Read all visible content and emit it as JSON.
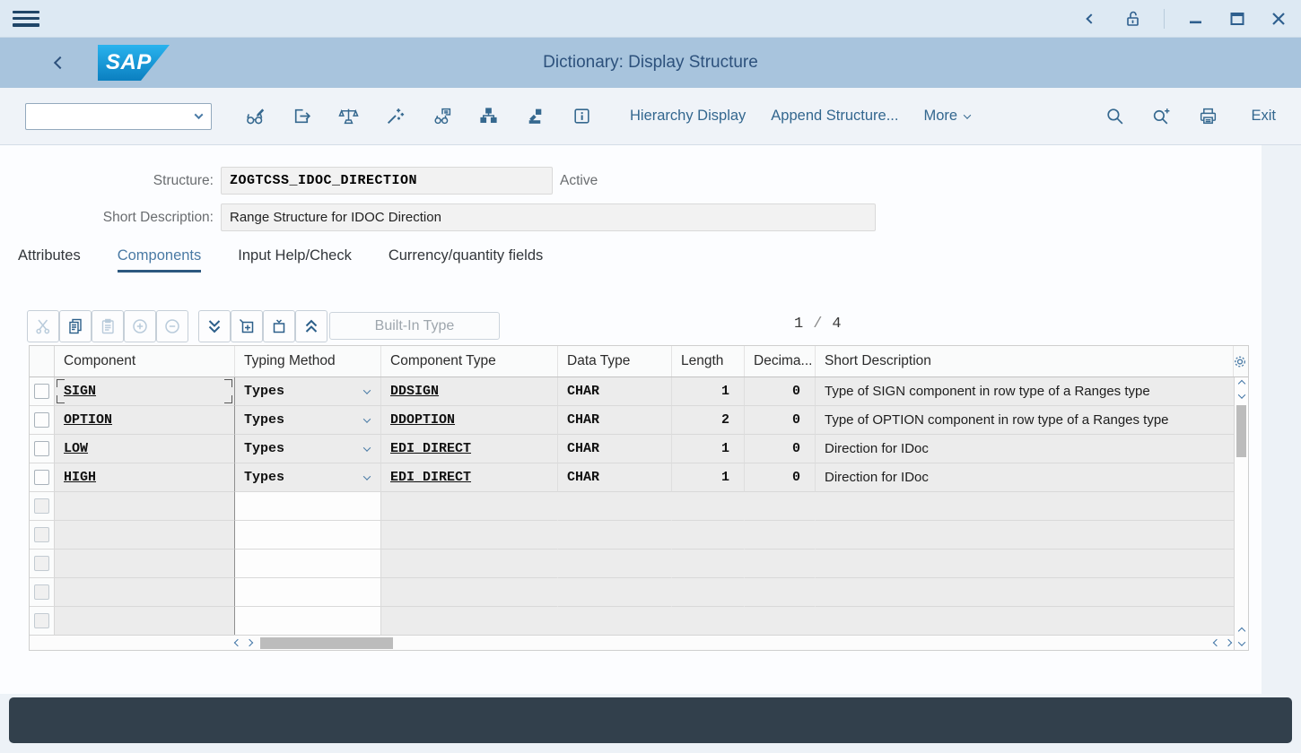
{
  "titlebar": {
    "icons": [
      "menu-icon",
      "back-icon",
      "unlock-icon",
      "minimize-icon",
      "maximize-icon",
      "close-icon"
    ]
  },
  "header": {
    "title": "Dictionary: Display Structure",
    "logo_text": "SAP"
  },
  "toolbar": {
    "command_field": {
      "value": "",
      "placeholder": ""
    },
    "icons": [
      "display-change-icon",
      "goto-icon",
      "consistency-check-icon",
      "activate-icon",
      "where-used-icon",
      "hierarchy-icon",
      "runtime-object-icon",
      "info-icon"
    ],
    "right_icons": [
      "find-icon",
      "find-next-icon",
      "print-icon"
    ],
    "buttons": {
      "hierarchy_display": "Hierarchy Display",
      "append_structure": "Append Structure...",
      "more": "More",
      "exit": "Exit"
    }
  },
  "form": {
    "structure_label": "Structure:",
    "structure_value": "ZOGTCSS_IDOC_DIRECTION",
    "status": "Active",
    "short_description_label": "Short Description:",
    "short_description_value": "Range Structure for IDOC Direction"
  },
  "tabs": [
    {
      "label": "Attributes",
      "active": false
    },
    {
      "label": "Components",
      "active": true
    },
    {
      "label": "Input Help/Check",
      "active": false
    },
    {
      "label": "Currency/quantity fields",
      "active": false
    }
  ],
  "table_toolbar": {
    "icons": [
      "cut-icon",
      "copy-icon",
      "paste-icon",
      "insert-row-icon",
      "delete-row-icon",
      "page-down-icon",
      "new-entry-icon",
      "select-entry-icon",
      "page-up-icon"
    ],
    "built_in_type_label": "Built-In Type",
    "pagination": {
      "current": "1",
      "separator": "/",
      "total": "4"
    }
  },
  "table": {
    "columns": [
      "Component",
      "Typing Method",
      "Component Type",
      "Data Type",
      "Length",
      "Decima...",
      "Short Description"
    ],
    "rows": [
      {
        "component": "SIGN",
        "typing_method": "Types",
        "component_type": "DDSIGN",
        "data_type": "CHAR",
        "length": "1",
        "decimals": "0",
        "short_description": "Type of SIGN component in row type of a Ranges type",
        "focused": true
      },
      {
        "component": "OPTION",
        "typing_method": "Types",
        "component_type": "DDOPTION",
        "data_type": "CHAR",
        "length": "2",
        "decimals": "0",
        "short_description": "Type of OPTION component in row type of a Ranges type",
        "focused": false
      },
      {
        "component": "LOW",
        "typing_method": "Types",
        "component_type": "EDI_DIRECT",
        "data_type": "CHAR",
        "length": "1",
        "decimals": "0",
        "short_description": "Direction for IDoc",
        "focused": false
      },
      {
        "component": "HIGH",
        "typing_method": "Types",
        "component_type": "EDI_DIRECT",
        "data_type": "CHAR",
        "length": "1",
        "decimals": "0",
        "short_description": "Direction for IDoc",
        "focused": false
      }
    ],
    "empty_row_count": 5
  },
  "colors": {
    "accent_blue": "#33678f",
    "header_bg": "#a8c4dd",
    "titlebar_bg": "#dde9f3",
    "toolbar_bg": "#eff3f8",
    "row_bg": "#ececec",
    "active_tab_underline": "#2c587f",
    "statusbar_bg": "#32404c",
    "logo_blue": "#0b7fc0"
  }
}
